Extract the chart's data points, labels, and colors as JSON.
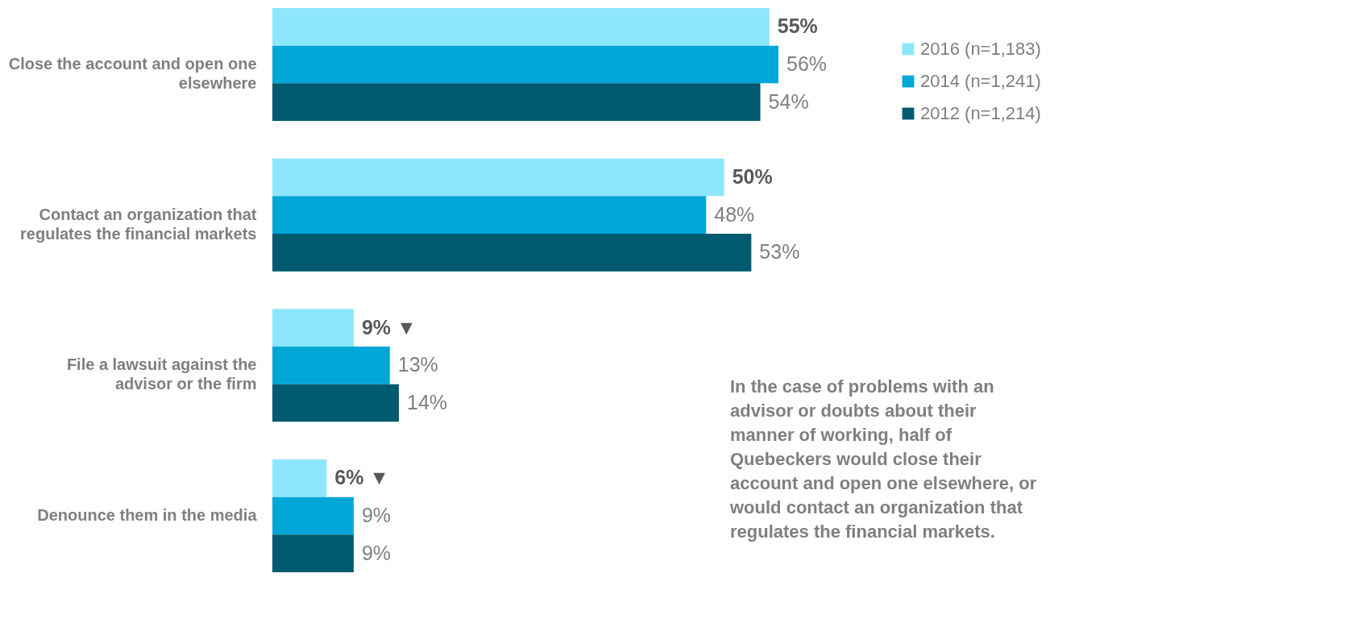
{
  "chart_data": {
    "type": "bar",
    "orientation": "horizontal",
    "legend": "right",
    "categories": [
      "Close the account and open one elsewhere",
      "Contact an organization that regulates the financial markets",
      "File a lawsuit against the advisor or the firm",
      "Denounce them in the media"
    ],
    "series": [
      {
        "name": "2016 (n=1,183)",
        "color": "#8ee6fc",
        "values": [
          55,
          50,
          9,
          6
        ],
        "value_labels": [
          "55%",
          "50%",
          "9% ▼",
          "6% ▼"
        ]
      },
      {
        "name": "2014 (n=1,241)",
        "color": "#00a6d6",
        "values": [
          56,
          48,
          13,
          9
        ],
        "value_labels": [
          "56%",
          "48%",
          "13%",
          "9%"
        ]
      },
      {
        "name": "2012 (n=1,214)",
        "color": "#005a70",
        "values": [
          54,
          53,
          14,
          9
        ],
        "value_labels": [
          "54%",
          "53%",
          "14%",
          "9%"
        ]
      }
    ],
    "annotations": [
      "In the case of problems with an advisor or doubts about their manner of working, half of Quebeckers would close their account and open one elsewhere, or would contact an organization that regulates the financial markets."
    ]
  }
}
